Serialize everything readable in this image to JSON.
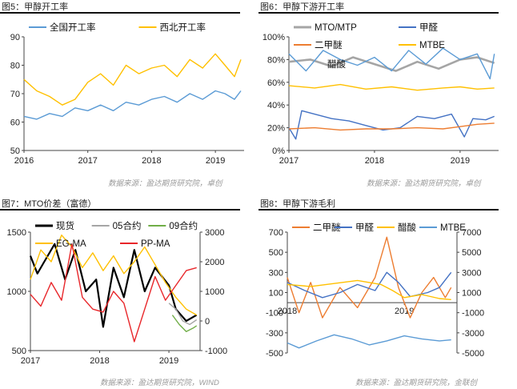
{
  "source_left": "数据来源：盈达期货研究院，卓创",
  "source_right": "数据来源：盈达期货研究院，卓创",
  "source_bottom_left": "数据来源：盈达期货研究院，WIND",
  "source_bottom_right": "数据来源：盈达期货研究院，金联创",
  "chart_data": [
    {
      "id": "fig5",
      "title": "图5：甲醇开工率",
      "type": "line",
      "ylim": [
        50,
        90
      ],
      "yticks": [
        50,
        60,
        70,
        80,
        90
      ],
      "xlim": [
        2016.0,
        2019.45
      ],
      "xticks": [
        {
          "v": 2016.0,
          "label": "2016"
        },
        {
          "v": 2017.0,
          "label": "2017"
        },
        {
          "v": 2018.0,
          "label": "2018"
        },
        {
          "v": 2019.0,
          "label": "2019"
        }
      ],
      "legend": "top",
      "series": [
        {
          "name": "全国开工率",
          "color": "#5b9bd5",
          "x": [
            2016.0,
            2016.2,
            2016.4,
            2016.6,
            2016.8,
            2017.0,
            2017.2,
            2017.4,
            2017.6,
            2017.8,
            2018.0,
            2018.2,
            2018.4,
            2018.6,
            2018.8,
            2019.0,
            2019.15,
            2019.3,
            2019.4
          ],
          "y": [
            62,
            61,
            63,
            62,
            65,
            64,
            66,
            64,
            67,
            66,
            68,
            69,
            67,
            70,
            68,
            71,
            70,
            68,
            71
          ]
        },
        {
          "name": "西北开工率",
          "color": "#ffc000",
          "x": [
            2016.0,
            2016.2,
            2016.4,
            2016.6,
            2016.8,
            2017.0,
            2017.2,
            2017.4,
            2017.6,
            2017.8,
            2018.0,
            2018.2,
            2018.4,
            2018.6,
            2018.8,
            2019.0,
            2019.15,
            2019.3,
            2019.4
          ],
          "y": [
            75,
            71,
            69,
            66,
            68,
            74,
            77,
            73,
            80,
            77,
            79,
            80,
            76,
            82,
            79,
            84,
            80,
            76,
            82
          ]
        }
      ]
    },
    {
      "id": "fig6",
      "title": "图6：甲醇下游开工率",
      "type": "line",
      "ylim": [
        0,
        100
      ],
      "yticks": [
        0,
        20,
        40,
        60,
        80,
        100
      ],
      "yformat": "percent",
      "xlim": [
        2017.0,
        2019.45
      ],
      "xticks": [
        {
          "v": 2017.0,
          "label": "2017"
        },
        {
          "v": 2018.0,
          "label": "2018"
        },
        {
          "v": 2019.0,
          "label": "2019"
        }
      ],
      "legend": "top",
      "series": [
        {
          "name": "MTO/MTP",
          "color": "#a5a5a5",
          "x": [
            2017.0,
            2017.25,
            2017.5,
            2017.75,
            2018.0,
            2018.25,
            2018.5,
            2018.75,
            2019.0,
            2019.2,
            2019.4
          ],
          "y": [
            78,
            80,
            74,
            82,
            76,
            70,
            78,
            72,
            80,
            82,
            77
          ]
        },
        {
          "name": "甲醛",
          "color": "#4472c4",
          "x": [
            2017.0,
            2017.08,
            2017.15,
            2017.3,
            2017.5,
            2017.7,
            2017.9,
            2018.1,
            2018.3,
            2018.5,
            2018.7,
            2018.9,
            2019.05,
            2019.15,
            2019.3,
            2019.4
          ],
          "y": [
            20,
            10,
            35,
            32,
            28,
            26,
            22,
            18,
            20,
            30,
            28,
            32,
            12,
            28,
            27,
            30
          ]
        },
        {
          "name": "二甲醚",
          "color": "#ed7d31",
          "x": [
            2017.0,
            2017.3,
            2017.6,
            2017.9,
            2018.2,
            2018.5,
            2018.8,
            2019.0,
            2019.2,
            2019.4
          ],
          "y": [
            19,
            20,
            18,
            19,
            19,
            20,
            19,
            21,
            23,
            24
          ]
        },
        {
          "name": "MTBE",
          "color": "#ffc000",
          "x": [
            2017.0,
            2017.3,
            2017.6,
            2017.9,
            2018.2,
            2018.5,
            2018.8,
            2019.0,
            2019.2,
            2019.4
          ],
          "y": [
            57,
            55,
            58,
            54,
            56,
            53,
            55,
            56,
            54,
            55
          ]
        },
        {
          "name": "醋酸",
          "color": "#5b9bd5",
          "x": [
            2017.0,
            2017.2,
            2017.4,
            2017.6,
            2017.8,
            2018.0,
            2018.2,
            2018.4,
            2018.6,
            2018.8,
            2019.0,
            2019.2,
            2019.35,
            2019.4
          ],
          "y": [
            85,
            70,
            88,
            80,
            75,
            82,
            70,
            88,
            76,
            90,
            80,
            85,
            63,
            85
          ]
        }
      ]
    },
    {
      "id": "fig7",
      "title": "图7：MTO价差（富德）",
      "type": "line",
      "ylim": [
        500,
        1500
      ],
      "yticks": [
        500,
        1000,
        1500
      ],
      "y2lim": [
        -1000,
        3000
      ],
      "y2ticks": [
        -1000,
        0,
        1000,
        2000,
        3000
      ],
      "xlim": [
        2017.0,
        2019.45
      ],
      "xticks": [
        {
          "v": 2017.0,
          "label": "2017"
        },
        {
          "v": 2018.0,
          "label": "2018"
        },
        {
          "v": 2019.0,
          "label": "2019"
        }
      ],
      "legend": "top",
      "series": [
        {
          "name": "现货",
          "color": "#000000",
          "axis": "left",
          "x": [
            2017.0,
            2017.1,
            2017.2,
            2017.35,
            2017.5,
            2017.65,
            2017.8,
            2017.95,
            2018.05,
            2018.2,
            2018.35,
            2018.5,
            2018.65,
            2018.8,
            2019.0,
            2019.1,
            2019.25,
            2019.4
          ],
          "y": [
            1300,
            1150,
            1250,
            1400,
            1100,
            1350,
            1000,
            1100,
            700,
            1200,
            950,
            1350,
            1000,
            1200,
            1050,
            850,
            750,
            800
          ]
        },
        {
          "name": "05合约",
          "color": "#a5a5a5",
          "axis": "left",
          "x": [
            2019.0,
            2019.1,
            2019.2,
            2019.3,
            2019.4
          ],
          "y": [
            900,
            850,
            750,
            720,
            760
          ]
        },
        {
          "name": "09合约",
          "color": "#70ad47",
          "axis": "left",
          "x": [
            2019.05,
            2019.15,
            2019.25,
            2019.35,
            2019.4
          ],
          "y": [
            800,
            720,
            660,
            690,
            710
          ]
        },
        {
          "name": "EG-MA",
          "color": "#ffc000",
          "axis": "right",
          "x": [
            2017.0,
            2017.15,
            2017.3,
            2017.45,
            2017.6,
            2017.75,
            2017.9,
            2018.05,
            2018.2,
            2018.35,
            2018.5,
            2018.65,
            2018.8,
            2018.95,
            2019.1,
            2019.25,
            2019.4
          ],
          "y": [
            1400,
            2400,
            2000,
            2900,
            2500,
            1800,
            2300,
            1700,
            2200,
            1600,
            2000,
            2500,
            1900,
            1300,
            800,
            400,
            200
          ]
        },
        {
          "name": "PP-MA",
          "color": "#e8262a",
          "axis": "right",
          "x": [
            2017.0,
            2017.15,
            2017.3,
            2017.45,
            2017.6,
            2017.75,
            2017.9,
            2018.05,
            2018.2,
            2018.35,
            2018.5,
            2018.65,
            2018.8,
            2018.95,
            2019.1,
            2019.25,
            2019.4
          ],
          "y": [
            900,
            500,
            1300,
            700,
            2600,
            800,
            400,
            300,
            1000,
            600,
            -700,
            400,
            1500,
            700,
            1200,
            1700,
            1800
          ]
        }
      ]
    },
    {
      "id": "fig8",
      "title": "图8：甲醇下游毛利",
      "type": "line",
      "ylim": [
        -500,
        700
      ],
      "yticks": [
        -500,
        -300,
        -100,
        100,
        300,
        500,
        700
      ],
      "y2lim": [
        -5000,
        7000
      ],
      "y2ticks": [
        -5000,
        -3000,
        -1000,
        1000,
        3000,
        5000,
        7000
      ],
      "xlim": [
        2018.0,
        2019.45
      ],
      "xticks": [
        {
          "v": 2018.0,
          "label": "2018"
        },
        {
          "v": 2019.0,
          "label": "2019"
        }
      ],
      "legend": "top",
      "series": [
        {
          "name": "二甲醚",
          "color": "#ed7d31",
          "axis": "left",
          "x": [
            2018.0,
            2018.1,
            2018.2,
            2018.3,
            2018.45,
            2018.6,
            2018.75,
            2018.85,
            2018.95,
            2019.05,
            2019.15,
            2019.25,
            2019.35,
            2019.4
          ],
          "y": [
            250,
            -100,
            200,
            -150,
            150,
            -50,
            250,
            650,
            150,
            -150,
            100,
            250,
            50,
            150
          ]
        },
        {
          "name": "甲醛",
          "color": "#4472c4",
          "axis": "left",
          "x": [
            2018.0,
            2018.15,
            2018.3,
            2018.45,
            2018.6,
            2018.75,
            2018.85,
            2018.95,
            2019.05,
            2019.2,
            2019.3,
            2019.4
          ],
          "y": [
            200,
            120,
            50,
            100,
            180,
            120,
            300,
            200,
            60,
            100,
            150,
            300
          ]
        },
        {
          "name": "醋酸",
          "color": "#ffc000",
          "axis": "right",
          "x": [
            2018.0,
            2018.2,
            2018.4,
            2018.6,
            2018.8,
            2018.9,
            2019.0,
            2019.15,
            2019.3,
            2019.4
          ],
          "y": [
            1800,
            1600,
            1900,
            2200,
            1800,
            1200,
            500,
            800,
            400,
            300
          ]
        },
        {
          "name": "MTBE",
          "color": "#5b9bd5",
          "axis": "right",
          "x": [
            2018.0,
            2018.1,
            2018.25,
            2018.4,
            2018.55,
            2018.7,
            2018.85,
            2019.0,
            2019.15,
            2019.3,
            2019.4
          ],
          "y": [
            -4000,
            -4500,
            -3800,
            -3200,
            -3600,
            -4200,
            -3800,
            -3300,
            -3600,
            -3800,
            -3700
          ]
        }
      ]
    }
  ]
}
